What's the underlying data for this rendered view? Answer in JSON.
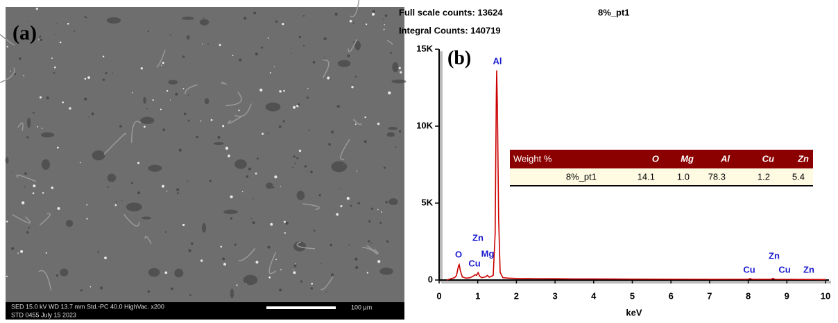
{
  "sem": {
    "panel_label": "(a)",
    "info_line1": "SED   15.0 kV   WD 13.7 mm    Std.-PC 40.0    HighVac.  x200",
    "info_line2": "STD    0455    July 15 2023",
    "scale_bar": "100 µm"
  },
  "chart_data": {
    "type": "line",
    "panel_label": "(b)",
    "title": "8%_pt1",
    "header": [
      "Full scale counts: 13624",
      "Integral Counts: 140719"
    ],
    "x_label": "keV",
    "x": [
      0.2,
      0.3,
      0.4,
      0.45,
      0.5,
      0.52,
      0.55,
      0.6,
      0.7,
      0.8,
      0.9,
      0.93,
      0.97,
      1.01,
      1.05,
      1.1,
      1.2,
      1.25,
      1.3,
      1.4,
      1.45,
      1.48,
      1.49,
      1.51,
      1.54,
      1.58,
      1.65,
      1.8,
      2,
      2.5,
      3,
      3.5,
      4,
      5,
      6,
      7,
      8,
      8.05,
      8.1,
      8.6,
      8.63,
      8.7,
      9,
      10
    ],
    "series": [
      {
        "color": "#cc0000",
        "values": [
          0,
          80,
          150,
          300,
          900,
          1000,
          600,
          200,
          120,
          150,
          280,
          350,
          300,
          480,
          250,
          150,
          200,
          300,
          180,
          300,
          3000,
          12000,
          13624,
          11000,
          4000,
          500,
          150,
          120,
          100,
          90,
          80,
          70,
          70,
          60,
          55,
          50,
          55,
          90,
          50,
          50,
          100,
          50,
          45,
          30
        ]
      }
    ],
    "xlim": [
      0,
      10
    ],
    "xticks": [
      0,
      1,
      2,
      3,
      4,
      5,
      6,
      7,
      8,
      9,
      10
    ],
    "ylim": [
      0,
      15000
    ],
    "yticks": [
      0,
      {
        "value": 5000,
        "label": "5K"
      },
      {
        "value": 10000,
        "label": "10K"
      },
      {
        "value": 15000,
        "label": "15K"
      }
    ],
    "annotations": [
      "O",
      "Cu",
      "Zn",
      "Mg",
      "Al",
      "Cu",
      "Zn",
      "Cu",
      "Zn"
    ],
    "table": {
      "header": [
        "Weight %",
        "O",
        "Mg",
        "Al",
        "Cu",
        "Zn"
      ],
      "rows": [
        [
          "8%_pt1",
          "14.1",
          "1.0",
          "78.3",
          "1.2",
          "5.4"
        ]
      ]
    }
  }
}
